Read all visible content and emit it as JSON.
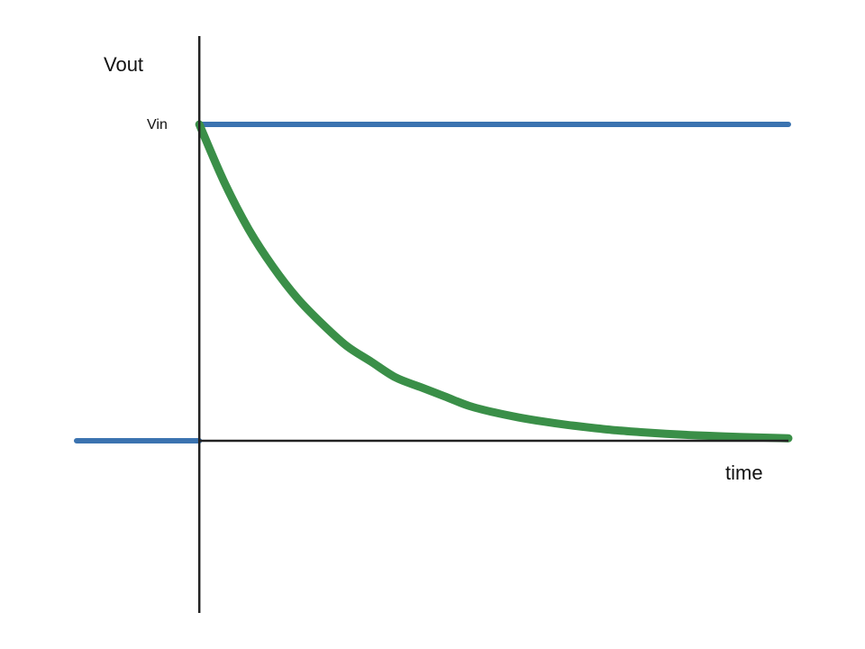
{
  "chart_data": {
    "type": "line",
    "ylabel": "Vout",
    "xlabel": "time",
    "ytick_label": "Vin",
    "xlim": [
      -1,
      4.8
    ],
    "ylim": [
      0,
      1
    ],
    "x_axis_at": 0,
    "y_axis_at": 0,
    "grid": false,
    "colors": {
      "input": "#3b73b0",
      "output": "#3a8f48",
      "axes": "#222222"
    },
    "series": [
      {
        "key": "input",
        "points": [
          [
            -1,
            0
          ],
          [
            0,
            0
          ],
          [
            0,
            1
          ],
          [
            4.8,
            1
          ]
        ]
      },
      {
        "key": "output",
        "x": [
          0,
          0.2,
          0.4,
          0.6,
          0.8,
          1.0,
          1.2,
          1.4,
          1.6,
          1.8,
          2.0,
          2.2,
          2.4,
          2.6,
          2.8,
          3.0,
          3.2,
          3.4,
          3.6,
          3.8,
          4.0,
          4.2,
          4.4,
          4.6,
          4.8
        ],
        "y": [
          1.0,
          0.82,
          0.67,
          0.55,
          0.45,
          0.37,
          0.3,
          0.25,
          0.2,
          0.17,
          0.14,
          0.11,
          0.09,
          0.074,
          0.061,
          0.05,
          0.041,
          0.033,
          0.027,
          0.022,
          0.018,
          0.015,
          0.012,
          0.01,
          0.008
        ]
      }
    ]
  }
}
